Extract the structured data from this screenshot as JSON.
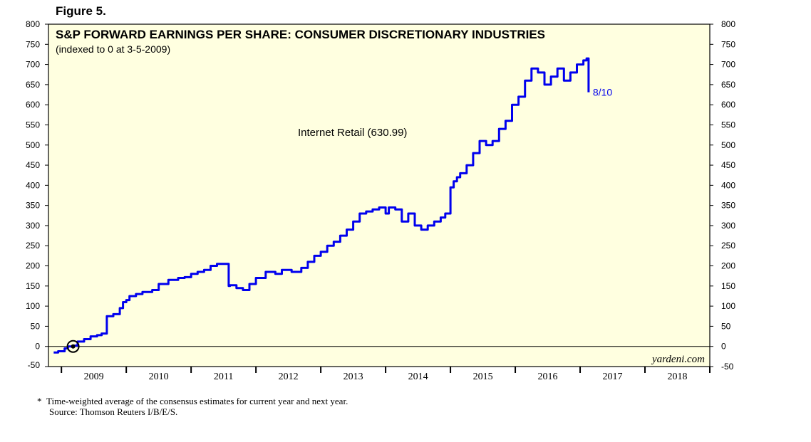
{
  "figure_label": "Figure 5.",
  "chart_data": {
    "type": "line",
    "title": "S&P FORWARD EARNINGS PER SHARE: CONSUMER DISCRETIONARY INDUSTRIES",
    "subtitle": "(indexed to 0 at 3-5-2009)",
    "series_name": "Internet Retail (630.99)",
    "end_label": "8/10",
    "watermark": "yardeni.com",
    "ylim": [
      -50,
      800
    ],
    "yticks": [
      -50,
      0,
      50,
      100,
      150,
      200,
      250,
      300,
      350,
      400,
      450,
      500,
      550,
      600,
      650,
      700,
      750,
      800
    ],
    "xlim": [
      2008.8,
      2019.0
    ],
    "year_ticks": [
      2009,
      2010,
      2011,
      2012,
      2013,
      2014,
      2015,
      2016,
      2017,
      2018,
      2019
    ],
    "year_labels": [
      "2009",
      "2010",
      "2011",
      "2012",
      "2013",
      "2014",
      "2015",
      "2016",
      "2017",
      "2018"
    ],
    "marker": {
      "x": 2009.18,
      "y": 0
    },
    "colors": {
      "plot_bg": "#ffffe0",
      "line": "#0000ee"
    },
    "series": [
      {
        "name": "Internet Retail",
        "x": [
          2008.88,
          2008.95,
          2009.05,
          2009.1,
          2009.18,
          2009.25,
          2009.35,
          2009.45,
          2009.55,
          2009.62,
          2009.7,
          2009.8,
          2009.9,
          2009.95,
          2010.0,
          2010.05,
          2010.15,
          2010.25,
          2010.4,
          2010.5,
          2010.65,
          2010.8,
          2010.9,
          2011.0,
          2011.1,
          2011.2,
          2011.3,
          2011.4,
          2011.5,
          2011.58,
          2011.6,
          2011.7,
          2011.8,
          2011.9,
          2012.0,
          2012.15,
          2012.3,
          2012.4,
          2012.55,
          2012.7,
          2012.8,
          2012.9,
          2013.0,
          2013.1,
          2013.2,
          2013.3,
          2013.4,
          2013.5,
          2013.6,
          2013.7,
          2013.8,
          2013.9,
          2014.0,
          2014.05,
          2014.15,
          2014.25,
          2014.35,
          2014.45,
          2014.55,
          2014.65,
          2014.75,
          2014.85,
          2014.92,
          2015.0,
          2015.05,
          2015.1,
          2015.15,
          2015.25,
          2015.35,
          2015.45,
          2015.55,
          2015.65,
          2015.75,
          2015.85,
          2015.95,
          2016.05,
          2016.15,
          2016.25,
          2016.35,
          2016.45,
          2016.55,
          2016.65,
          2016.75,
          2016.85,
          2016.95,
          2017.05,
          2017.1,
          2017.13
        ],
        "values": [
          -15,
          -12,
          -5,
          0,
          2,
          12,
          18,
          25,
          28,
          32,
          75,
          80,
          95,
          110,
          115,
          125,
          130,
          135,
          140,
          155,
          165,
          170,
          172,
          180,
          185,
          190,
          200,
          205,
          205,
          150,
          152,
          145,
          140,
          155,
          170,
          185,
          180,
          190,
          185,
          195,
          210,
          225,
          235,
          250,
          260,
          275,
          290,
          310,
          330,
          335,
          340,
          345,
          330,
          345,
          340,
          310,
          330,
          300,
          290,
          300,
          310,
          320,
          330,
          395,
          410,
          420,
          430,
          450,
          480,
          510,
          500,
          510,
          540,
          560,
          600,
          620,
          660,
          690,
          680,
          650,
          670,
          690,
          660,
          680,
          700,
          710,
          715,
          631
        ]
      }
    ]
  },
  "footnote": {
    "line1": "Time-weighted average of the consensus estimates for current year and next year.",
    "line2": "Source: Thomson Reuters I/B/E/S."
  }
}
